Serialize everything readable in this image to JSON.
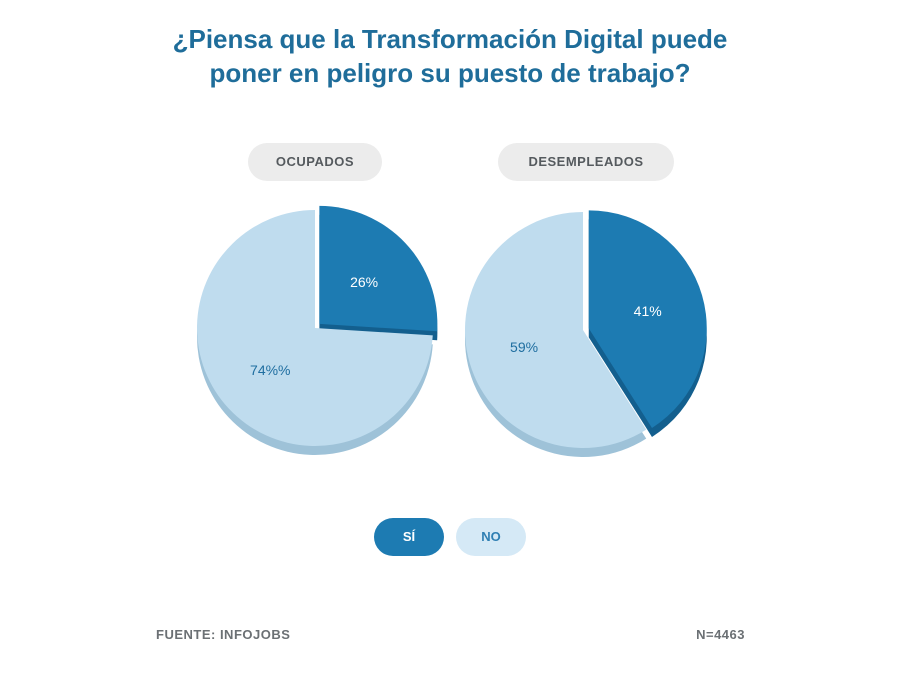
{
  "title": {
    "line1": "¿Piensa que la Transformación Digital puede",
    "line2": "poner en peligro su puesto de trabajo?"
  },
  "legend": {
    "si_label": "SÍ",
    "no_label": "NO",
    "si_color": "#1d7bb2",
    "si_shadow": "#135f8e",
    "no_color": "#bfdcee",
    "no_shadow": "#9ec2d8",
    "si_text_color": "#1f6ea0",
    "no_text_color": "#2f7fb3"
  },
  "footer": {
    "source": "FUENTE: INFOJOBS",
    "sample": "N=4463"
  },
  "chart_data": [
    {
      "type": "pie",
      "title": "OCUPADOS",
      "slices": [
        {
          "label": "SÍ",
          "value": 26,
          "display": "26%"
        },
        {
          "label": "NO",
          "value": 74,
          "display": "74%%"
        }
      ],
      "exploded": "SÍ"
    },
    {
      "type": "pie",
      "title": "DESEMPLEADOS",
      "slices": [
        {
          "label": "SÍ",
          "value": 41,
          "display": "41%"
        },
        {
          "label": "NO",
          "value": 59,
          "display": "59%"
        }
      ],
      "exploded": "SÍ"
    }
  ]
}
